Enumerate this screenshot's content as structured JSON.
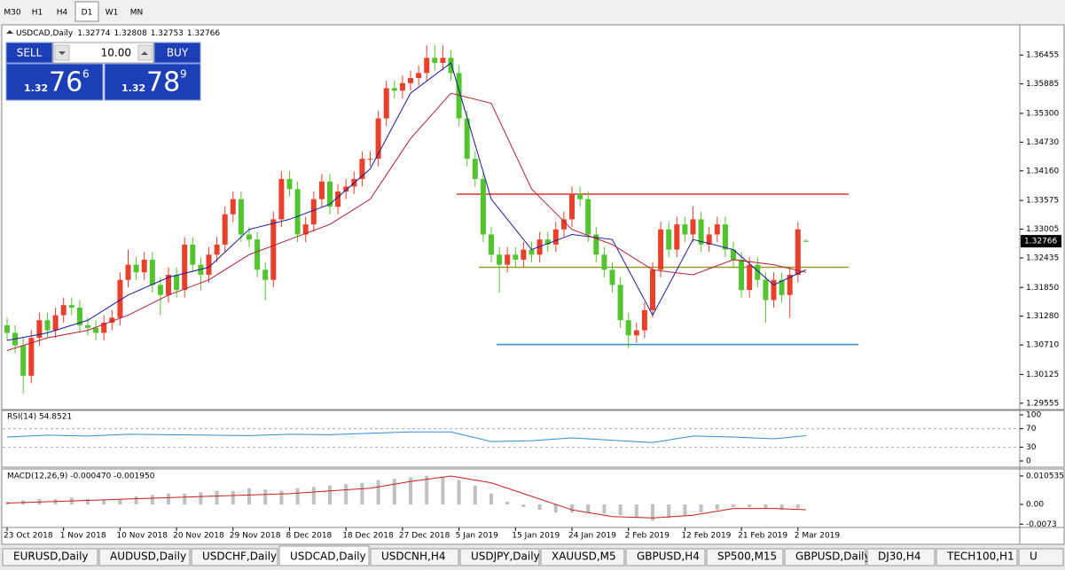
{
  "toolbar": [
    "M30",
    "H1",
    "H4",
    "D1",
    "W1",
    "MN"
  ],
  "active_timeframe": 3,
  "trade_panel": {
    "sell": "SELL",
    "lot": "10.00",
    "buy": "BUY",
    "bid": [
      "1.32",
      "76",
      "6"
    ],
    "ask": [
      "1.32",
      "78",
      "9"
    ]
  },
  "chart_data": {
    "type": "candlestick",
    "title": "USDCAD,Daily",
    "up_color": "#e8402a",
    "down_color": "#52c42e",
    "open": [
      1.311,
      1.3095,
      1.307,
      1.301,
      1.3085,
      1.312,
      1.31,
      1.313,
      1.315,
      1.3145,
      1.311,
      1.3105,
      1.3095,
      1.3115,
      1.3125,
      1.32,
      1.323,
      1.3215,
      1.324,
      1.319,
      1.317,
      1.321,
      1.318,
      1.327,
      1.323,
      1.321,
      1.325,
      1.327,
      1.333,
      1.336,
      1.329,
      1.328,
      1.322,
      1.32,
      1.332,
      1.34,
      1.338,
      1.329,
      1.331,
      1.336,
      1.3395,
      1.3345,
      1.3375,
      1.3385,
      1.34,
      1.344,
      1.344,
      1.352,
      1.358,
      1.3575,
      1.359,
      1.36,
      1.361,
      1.364,
      1.363,
      1.364,
      1.361,
      1.352,
      1.344,
      1.34,
      1.329,
      1.325,
      1.323,
      1.325,
      1.324,
      1.326,
      1.325,
      1.328,
      1.327,
      1.33,
      1.332,
      1.337,
      1.336,
      1.329,
      1.325,
      1.322,
      1.319,
      1.312,
      1.309,
      1.31,
      1.314,
      1.322,
      1.33,
      1.326,
      1.331,
      1.329,
      1.332,
      1.327,
      1.329,
      1.331,
      1.326,
      1.324,
      1.318,
      1.323,
      1.32,
      1.316,
      1.32,
      1.317,
      1.321,
      1.32774
    ],
    "high": [
      1.3125,
      1.311,
      1.3085,
      1.31,
      1.3135,
      1.3135,
      1.3145,
      1.3165,
      1.3165,
      1.316,
      1.3125,
      1.312,
      1.313,
      1.314,
      1.3215,
      1.326,
      1.3245,
      1.3255,
      1.3255,
      1.3205,
      1.3225,
      1.3225,
      1.3285,
      1.3285,
      1.3245,
      1.3265,
      1.3285,
      1.3345,
      1.3375,
      1.3375,
      1.3305,
      1.3295,
      1.3235,
      1.3335,
      1.3415,
      1.3415,
      1.3395,
      1.3325,
      1.3375,
      1.341,
      1.341,
      1.339,
      1.34,
      1.3415,
      1.3455,
      1.3455,
      1.3535,
      1.3595,
      1.3595,
      1.3605,
      1.3615,
      1.3625,
      1.3665,
      1.3665,
      1.3665,
      1.3655,
      1.3625,
      1.3535,
      1.3455,
      1.3415,
      1.3305,
      1.3265,
      1.3265,
      1.3265,
      1.3275,
      1.3275,
      1.3295,
      1.3295,
      1.3315,
      1.3335,
      1.3385,
      1.3385,
      1.3375,
      1.3305,
      1.3265,
      1.3235,
      1.3205,
      1.3135,
      1.3115,
      1.3155,
      1.3235,
      1.3315,
      1.3315,
      1.3325,
      1.3325,
      1.3345,
      1.3335,
      1.3305,
      1.3325,
      1.3325,
      1.3275,
      1.3255,
      1.3245,
      1.3245,
      1.3215,
      1.3215,
      1.3215,
      1.3225,
      1.3315,
      1.32808
    ],
    "low": [
      1.308,
      1.3055,
      1.2975,
      1.2995,
      1.307,
      1.3085,
      1.3085,
      1.3115,
      1.313,
      1.3095,
      1.309,
      1.308,
      1.308,
      1.31,
      1.311,
      1.3185,
      1.32,
      1.32,
      1.3175,
      1.313,
      1.3155,
      1.3165,
      1.3165,
      1.3215,
      1.318,
      1.3195,
      1.3235,
      1.3255,
      1.3315,
      1.3275,
      1.3265,
      1.3205,
      1.316,
      1.3185,
      1.3305,
      1.3365,
      1.3275,
      1.3275,
      1.3295,
      1.3345,
      1.333,
      1.333,
      1.336,
      1.337,
      1.3385,
      1.3425,
      1.3425,
      1.3505,
      1.356,
      1.356,
      1.3575,
      1.3585,
      1.3595,
      1.3615,
      1.3615,
      1.3595,
      1.3505,
      1.3425,
      1.3385,
      1.3275,
      1.3235,
      1.3175,
      1.3215,
      1.3225,
      1.3225,
      1.3235,
      1.3235,
      1.3255,
      1.3255,
      1.3285,
      1.3305,
      1.3345,
      1.3275,
      1.3235,
      1.3205,
      1.3175,
      1.3105,
      1.3065,
      1.3075,
      1.3085,
      1.3125,
      1.3205,
      1.3245,
      1.3245,
      1.3275,
      1.3275,
      1.3255,
      1.3255,
      1.3275,
      1.3245,
      1.3225,
      1.3165,
      1.3165,
      1.3185,
      1.3115,
      1.3145,
      1.3155,
      1.3125,
      1.3195,
      1.32753
    ],
    "close": [
      1.3095,
      1.307,
      1.301,
      1.3085,
      1.312,
      1.31,
      1.313,
      1.315,
      1.3145,
      1.311,
      1.3105,
      1.3095,
      1.3115,
      1.3125,
      1.32,
      1.323,
      1.3215,
      1.324,
      1.319,
      1.317,
      1.321,
      1.318,
      1.327,
      1.323,
      1.321,
      1.325,
      1.327,
      1.333,
      1.336,
      1.329,
      1.328,
      1.322,
      1.32,
      1.332,
      1.34,
      1.338,
      1.329,
      1.331,
      1.336,
      1.3395,
      1.3345,
      1.3375,
      1.3385,
      1.34,
      1.344,
      1.344,
      1.352,
      1.358,
      1.3575,
      1.359,
      1.36,
      1.361,
      1.364,
      1.363,
      1.364,
      1.361,
      1.352,
      1.344,
      1.34,
      1.329,
      1.325,
      1.323,
      1.325,
      1.324,
      1.326,
      1.325,
      1.328,
      1.327,
      1.33,
      1.332,
      1.337,
      1.336,
      1.329,
      1.325,
      1.322,
      1.319,
      1.312,
      1.309,
      1.31,
      1.314,
      1.322,
      1.33,
      1.326,
      1.331,
      1.329,
      1.332,
      1.327,
      1.329,
      1.331,
      1.326,
      1.324,
      1.318,
      1.323,
      1.32,
      1.316,
      1.32,
      1.317,
      1.321,
      1.33,
      1.32766
    ],
    "averages": [
      {
        "color": "#1a1a9e",
        "x": [
          0,
          5,
          10,
          15,
          20,
          25,
          30,
          35,
          40,
          45,
          50,
          55,
          60,
          65,
          70,
          75,
          80,
          85,
          90,
          95,
          99
        ],
        "values": [
          1.308,
          1.3095,
          1.312,
          1.317,
          1.3205,
          1.3225,
          1.33,
          1.332,
          1.335,
          1.342,
          1.357,
          1.363,
          1.336,
          1.326,
          1.329,
          1.328,
          1.313,
          1.328,
          1.326,
          1.319,
          1.322
        ]
      },
      {
        "color": "#b0203a",
        "x": [
          0,
          5,
          10,
          15,
          20,
          25,
          30,
          35,
          40,
          45,
          50,
          55,
          60,
          65,
          70,
          75,
          80,
          85,
          90,
          95,
          99
        ],
        "values": [
          1.306,
          1.3085,
          1.31,
          1.313,
          1.317,
          1.32,
          1.325,
          1.328,
          1.331,
          1.336,
          1.348,
          1.357,
          1.355,
          1.338,
          1.33,
          1.327,
          1.322,
          1.321,
          1.324,
          1.323,
          1.3215
        ]
      }
    ],
    "levels": [
      {
        "value": 1.337,
        "color": "#e8302a"
      },
      {
        "value": 1.3225,
        "color": "#9a9a2a"
      },
      {
        "value": 1.3072,
        "color": "#2e8fd8"
      }
    ],
    "ylim": [
      1.295,
      1.3702
    ],
    "yticks": [
      {
        "value": 1.36455,
        "label": "1.36455"
      },
      {
        "value": 1.35885,
        "label": "1.35885"
      },
      {
        "value": 1.353,
        "label": "1.35300"
      },
      {
        "value": 1.3473,
        "label": "1.34730"
      },
      {
        "value": 1.3416,
        "label": "1.34160"
      },
      {
        "value": 1.33575,
        "label": "1.33575"
      },
      {
        "value": 1.33005,
        "label": "1.33005"
      },
      {
        "value": 1.32435,
        "label": "1.32435"
      },
      {
        "value": 1.3185,
        "label": "1.31850"
      },
      {
        "value": 1.3128,
        "label": "1.31280"
      },
      {
        "value": 1.3071,
        "label": "1.30710"
      },
      {
        "value": 1.30125,
        "label": "1.30125"
      },
      {
        "value": 1.29555,
        "label": "1.29555"
      }
    ],
    "x_labels": [
      "23 Oct 2018",
      "1 Nov 2018",
      "10 Nov 2018",
      "20 Nov 2018",
      "29 Nov 2018",
      "8 Dec 2018",
      "18 Dec 2018",
      "27 Dec 2018",
      "5 Jan 2019",
      "15 Jan 2019",
      "24 Jan 2019",
      "2 Feb 2019",
      "12 Feb 2019",
      "21 Feb 2019",
      "2 Mar 2019"
    ]
  },
  "rsi": {
    "title": "RSI(14) 54.8521",
    "color": "#2e8fd8",
    "x": [
      0,
      5,
      10,
      15,
      20,
      25,
      30,
      35,
      40,
      45,
      50,
      55,
      60,
      65,
      70,
      75,
      80,
      85,
      90,
      95,
      99
    ],
    "values": [
      52,
      56,
      54,
      58,
      57,
      56,
      55,
      58,
      57,
      60,
      63,
      63,
      42,
      44,
      50,
      45,
      40,
      54,
      52,
      48,
      54.8521
    ],
    "ylim": [
      0,
      100
    ],
    "yticks": [
      100,
      70,
      30,
      0
    ]
  },
  "macd": {
    "title": "MACD(12,26,9) -0.000470 -0.001950",
    "hist_color": "#c0c0c0",
    "signal_color": "#c81e1e",
    "hist_x": [
      0,
      2,
      4,
      6,
      8,
      10,
      12,
      14,
      16,
      18,
      20,
      22,
      24,
      26,
      28,
      30,
      32,
      34,
      36,
      38,
      40,
      42,
      44,
      46,
      48,
      50,
      52,
      54,
      56,
      58,
      60,
      62,
      64,
      66,
      68,
      70,
      72,
      74,
      76,
      78,
      80,
      82,
      84,
      86,
      88,
      90,
      92,
      94,
      96,
      98
    ],
    "hist": [
      0.001,
      0.0015,
      0.002,
      0.002,
      0.0025,
      0.002,
      0.0015,
      0.002,
      0.003,
      0.0035,
      0.004,
      0.004,
      0.0045,
      0.005,
      0.005,
      0.006,
      0.0055,
      0.005,
      0.006,
      0.0065,
      0.007,
      0.0075,
      0.008,
      0.009,
      0.0095,
      0.01,
      0.0105,
      0.01,
      0.009,
      0.007,
      0.004,
      0.001,
      -0.001,
      -0.002,
      -0.003,
      -0.003,
      -0.003,
      -0.0035,
      -0.004,
      -0.005,
      -0.006,
      -0.005,
      -0.004,
      -0.003,
      -0.002,
      -0.001,
      -0.001,
      -0.0015,
      -0.002,
      -0.0015
    ],
    "signal_x": [
      0,
      5,
      10,
      15,
      20,
      25,
      30,
      35,
      40,
      45,
      50,
      55,
      60,
      65,
      70,
      75,
      80,
      85,
      90,
      95,
      99
    ],
    "signal": [
      0.0005,
      0.001,
      0.0015,
      0.002,
      0.0025,
      0.003,
      0.0035,
      0.004,
      0.005,
      0.006,
      0.0085,
      0.0105,
      0.008,
      0.003,
      -0.002,
      -0.0045,
      -0.005,
      -0.004,
      -0.0015,
      -0.0015,
      -0.00195
    ],
    "ylim": [
      -0.0082,
      0.0128
    ],
    "yticks": [
      0.010535,
      {
        "value": 0,
        "label": "0.00"
      },
      -0.0073
    ]
  },
  "tabs": [
    "EURUSD,Daily",
    "AUDUSD,Daily",
    "USDCHF,Daily",
    "USDCAD,Daily",
    "USDCNH,H4",
    "USDJPY,Daily",
    "XAUUSD,M5",
    "GBPUSD,H4",
    "SP500,M15",
    "GBPUSD,Daily",
    "DJ30,H4",
    "TECH100,H1",
    "U"
  ],
  "active_tab": 3
}
